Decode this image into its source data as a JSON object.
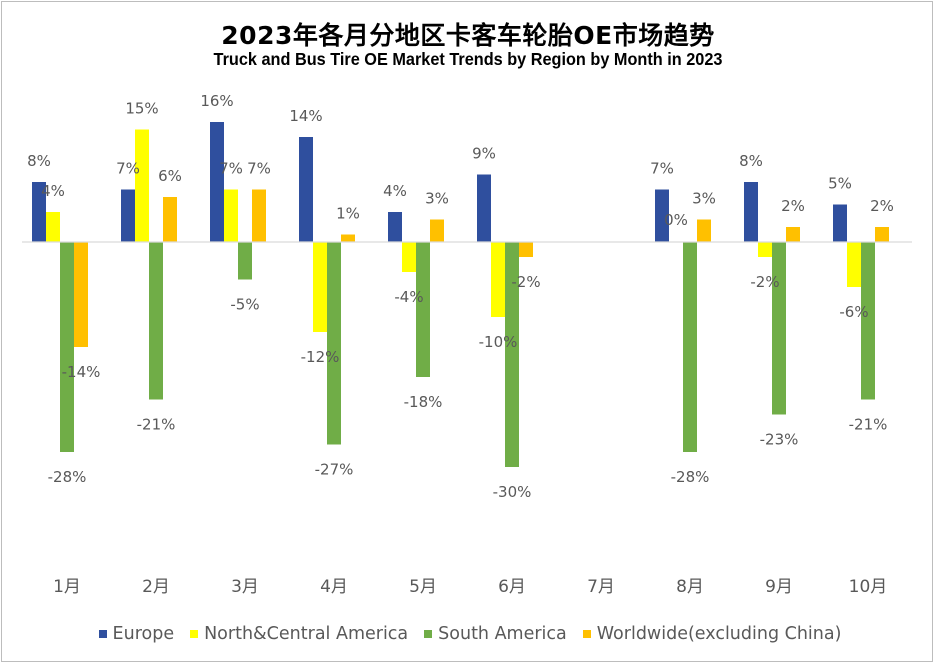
{
  "chart_data": {
    "type": "bar",
    "title": "2023年各月分地区卡客车轮胎OE市场趋势",
    "subtitle": "Truck and Bus Tire OE Market Trends by Region by Month in 2023",
    "categories": [
      "1月",
      "2月",
      "3月",
      "4月",
      "5月",
      "6月",
      "7月",
      "8月",
      "9月",
      "10月"
    ],
    "unit": "%",
    "series": [
      {
        "name": "Europe",
        "color": "#2f4f9e",
        "values": [
          8,
          7,
          16,
          14,
          4,
          9,
          null,
          7,
          8,
          5
        ]
      },
      {
        "name": "North&Central America",
        "color": "#ffff00",
        "values": [
          4,
          15,
          7,
          -12,
          -4,
          -10,
          null,
          0,
          -2,
          -6
        ]
      },
      {
        "name": "South America",
        "color": "#70ad47",
        "values": [
          -28,
          -21,
          -5,
          -27,
          -18,
          -30,
          null,
          -28,
          -23,
          -21
        ]
      },
      {
        "name": "Worldwide(excluding China)",
        "color": "#ffc000",
        "values": [
          -14,
          6,
          7,
          1,
          3,
          -2,
          null,
          3,
          2,
          2
        ]
      }
    ],
    "xlabel": "",
    "ylabel": "",
    "ylim": [
      -32,
      17
    ],
    "grid": false,
    "legend_position": "bottom"
  }
}
